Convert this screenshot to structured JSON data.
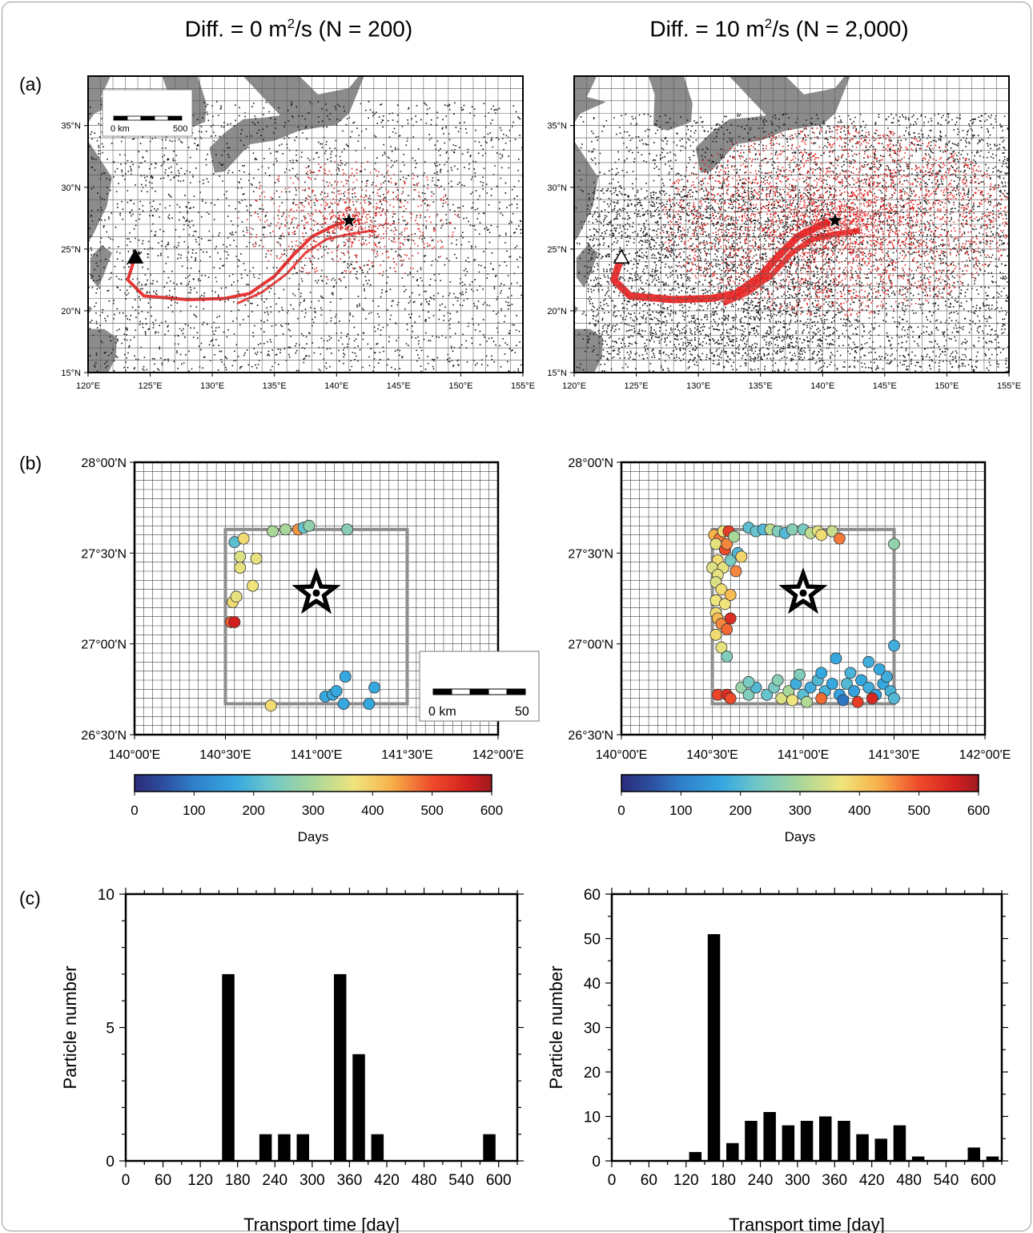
{
  "figure": {
    "columns": [
      {
        "title_main": "Diff. = 0 m",
        "title_sup": "2",
        "title_rest": "/s (N = 200)"
      },
      {
        "title_main": "Diff. = 10 m",
        "title_sup": "2",
        "title_rest": "/s (N = 2,000)"
      }
    ],
    "panel_labels": [
      "(a)",
      "(b)",
      "(c)"
    ]
  },
  "colors": {
    "trajectory_red": "#e8201f",
    "trajectory_black": "#111111",
    "land": "#8c8c8c",
    "box": "#8e8e8e"
  },
  "maps": {
    "lat_ticks": [
      "15°N",
      "20°N",
      "25°N",
      "30°N",
      "35°N"
    ],
    "lon_ticks": [
      "120°E",
      "125°E",
      "130°E",
      "135°E",
      "140°E",
      "145°E",
      "150°E",
      "155°E"
    ],
    "scalebar": {
      "start": "0 km",
      "end": "500"
    },
    "markers": [
      "release-point-triangle",
      "observation-star"
    ]
  },
  "zoom": {
    "lat_ticks": [
      "26°30'N",
      "27°00'N",
      "27°30'N",
      "28°00'N"
    ],
    "lon_ticks": [
      "140°00'E",
      "140°30'E",
      "141°00'E",
      "141°30'E",
      "142°00'E"
    ],
    "scalebar": {
      "start": "0 km",
      "end": "50"
    },
    "colorbar": {
      "ticks": [
        "0",
        "100",
        "200",
        "300",
        "400",
        "500",
        "600"
      ],
      "label": "Days"
    }
  },
  "chart_data": [
    {
      "type": "histogram",
      "xlabel": "Transport time [day]",
      "ylabel": "Particle number",
      "xlim": [
        0,
        630
      ],
      "ylim": [
        0,
        10
      ],
      "x_ticks": [
        "0",
        "60",
        "120",
        "180",
        "240",
        "300",
        "360",
        "420",
        "480",
        "540",
        "600"
      ],
      "y_ticks": [
        "0",
        "5",
        "10"
      ],
      "bins": [
        {
          "x": 165,
          "value": 7
        },
        {
          "x": 225,
          "value": 1
        },
        {
          "x": 255,
          "value": 1
        },
        {
          "x": 285,
          "value": 1
        },
        {
          "x": 345,
          "value": 7
        },
        {
          "x": 375,
          "value": 4
        },
        {
          "x": 405,
          "value": 1
        },
        {
          "x": 585,
          "value": 1
        }
      ]
    },
    {
      "type": "histogram",
      "xlabel": "Transport time [day]",
      "ylabel": "Particle number",
      "xlim": [
        0,
        630
      ],
      "ylim": [
        0,
        60
      ],
      "x_ticks": [
        "0",
        "60",
        "120",
        "180",
        "240",
        "300",
        "360",
        "420",
        "480",
        "540",
        "600"
      ],
      "y_ticks": [
        "0",
        "10",
        "20",
        "30",
        "40",
        "50",
        "60"
      ],
      "bins": [
        {
          "x": 135,
          "value": 2
        },
        {
          "x": 165,
          "value": 51
        },
        {
          "x": 195,
          "value": 4
        },
        {
          "x": 225,
          "value": 9
        },
        {
          "x": 255,
          "value": 11
        },
        {
          "x": 285,
          "value": 8
        },
        {
          "x": 315,
          "value": 9
        },
        {
          "x": 345,
          "value": 10
        },
        {
          "x": 375,
          "value": 9
        },
        {
          "x": 405,
          "value": 6
        },
        {
          "x": 435,
          "value": 5
        },
        {
          "x": 465,
          "value": 8
        },
        {
          "x": 495,
          "value": 1
        },
        {
          "x": 585,
          "value": 3
        },
        {
          "x": 615,
          "value": 1
        }
      ]
    }
  ],
  "arrival_points": [
    [
      [
        140.53,
        27.12,
        490
      ],
      [
        140.55,
        27.12,
        560
      ],
      [
        140.54,
        27.23,
        380
      ],
      [
        140.56,
        27.26,
        360
      ],
      [
        140.58,
        27.42,
        360
      ],
      [
        140.58,
        27.48,
        350
      ],
      [
        140.55,
        27.56,
        210
      ],
      [
        140.6,
        27.58,
        380
      ],
      [
        140.65,
        27.32,
        370
      ],
      [
        140.67,
        27.47,
        360
      ],
      [
        140.76,
        27.62,
        300
      ],
      [
        140.83,
        27.63,
        300
      ],
      [
        140.9,
        27.63,
        450
      ],
      [
        140.93,
        27.64,
        220
      ],
      [
        140.96,
        27.65,
        270
      ],
      [
        141.17,
        27.63,
        260
      ],
      [
        140.75,
        26.66,
        380
      ],
      [
        141.05,
        26.71,
        170
      ],
      [
        141.09,
        26.72,
        170
      ],
      [
        141.11,
        26.74,
        170
      ],
      [
        141.16,
        26.82,
        170
      ],
      [
        141.15,
        26.67,
        170
      ],
      [
        141.29,
        26.67,
        170
      ],
      [
        141.32,
        26.76,
        170
      ]
    ],
    [
      [
        140.51,
        27.6,
        430
      ],
      [
        140.54,
        27.58,
        470
      ],
      [
        140.56,
        27.62,
        380
      ],
      [
        140.52,
        27.55,
        360
      ],
      [
        140.57,
        27.52,
        300
      ],
      [
        140.53,
        27.46,
        380
      ],
      [
        140.5,
        27.42,
        350
      ],
      [
        140.56,
        27.42,
        360
      ],
      [
        140.6,
        27.46,
        240
      ],
      [
        140.53,
        27.38,
        360
      ],
      [
        140.52,
        27.34,
        350
      ],
      [
        140.55,
        27.3,
        380
      ],
      [
        140.52,
        27.24,
        370
      ],
      [
        140.57,
        27.22,
        370
      ],
      [
        140.52,
        27.17,
        380
      ],
      [
        140.53,
        27.14,
        420
      ],
      [
        140.55,
        27.11,
        460
      ],
      [
        140.6,
        27.14,
        540
      ],
      [
        140.58,
        27.08,
        480
      ],
      [
        140.52,
        27.05,
        380
      ],
      [
        140.55,
        26.98,
        360
      ],
      [
        140.58,
        26.93,
        250
      ],
      [
        140.57,
        27.52,
        500
      ],
      [
        140.58,
        27.55,
        460
      ],
      [
        140.59,
        27.62,
        520
      ],
      [
        140.62,
        27.59,
        300
      ],
      [
        140.64,
        27.5,
        200
      ],
      [
        140.66,
        27.48,
        390
      ],
      [
        140.63,
        27.4,
        460
      ],
      [
        140.6,
        27.27,
        420
      ],
      [
        140.7,
        27.64,
        210
      ],
      [
        140.74,
        27.62,
        220
      ],
      [
        140.78,
        27.63,
        200
      ],
      [
        140.82,
        27.63,
        320
      ],
      [
        140.86,
        27.62,
        250
      ],
      [
        140.9,
        27.61,
        200
      ],
      [
        140.94,
        27.63,
        260
      ],
      [
        141.0,
        27.63,
        240
      ],
      [
        141.04,
        27.61,
        320
      ],
      [
        141.08,
        27.62,
        360
      ],
      [
        141.1,
        27.6,
        380
      ],
      [
        141.16,
        27.62,
        330
      ],
      [
        141.2,
        27.58,
        470
      ],
      [
        141.5,
        27.55,
        270
      ],
      [
        141.5,
        26.99,
        180
      ],
      [
        140.53,
        26.72,
        510
      ],
      [
        140.58,
        26.72,
        540
      ],
      [
        140.6,
        26.7,
        500
      ],
      [
        140.66,
        26.76,
        280
      ],
      [
        140.7,
        26.72,
        250
      ],
      [
        140.74,
        26.76,
        200
      ],
      [
        140.8,
        26.72,
        220
      ],
      [
        140.84,
        26.76,
        240
      ],
      [
        140.88,
        26.7,
        350
      ],
      [
        140.92,
        26.74,
        300
      ],
      [
        140.96,
        26.78,
        180
      ],
      [
        141.0,
        26.72,
        210
      ],
      [
        141.04,
        26.76,
        180
      ],
      [
        141.08,
        26.8,
        200
      ],
      [
        141.12,
        26.74,
        190
      ],
      [
        141.16,
        26.78,
        170
      ],
      [
        141.2,
        26.72,
        160
      ],
      [
        141.24,
        26.78,
        200
      ],
      [
        141.28,
        26.74,
        160
      ],
      [
        141.32,
        26.8,
        170
      ],
      [
        141.36,
        26.76,
        180
      ],
      [
        141.4,
        26.72,
        160
      ],
      [
        141.44,
        26.78,
        170
      ],
      [
        141.48,
        26.74,
        190
      ],
      [
        141.5,
        26.7,
        200
      ],
      [
        140.7,
        26.79,
        240
      ],
      [
        140.86,
        26.8,
        260
      ],
      [
        140.94,
        26.69,
        370
      ],
      [
        141.02,
        26.68,
        310
      ],
      [
        141.1,
        26.7,
        480
      ],
      [
        141.22,
        26.69,
        90
      ],
      [
        141.3,
        26.68,
        520
      ],
      [
        141.38,
        26.7,
        550
      ],
      [
        141.46,
        26.82,
        180
      ],
      [
        141.42,
        26.86,
        170
      ],
      [
        141.36,
        26.9,
        180
      ],
      [
        141.18,
        26.92,
        170
      ],
      [
        141.1,
        26.84,
        170
      ],
      [
        140.98,
        26.83,
        250
      ],
      [
        141.26,
        26.84,
        190
      ]
    ]
  ]
}
